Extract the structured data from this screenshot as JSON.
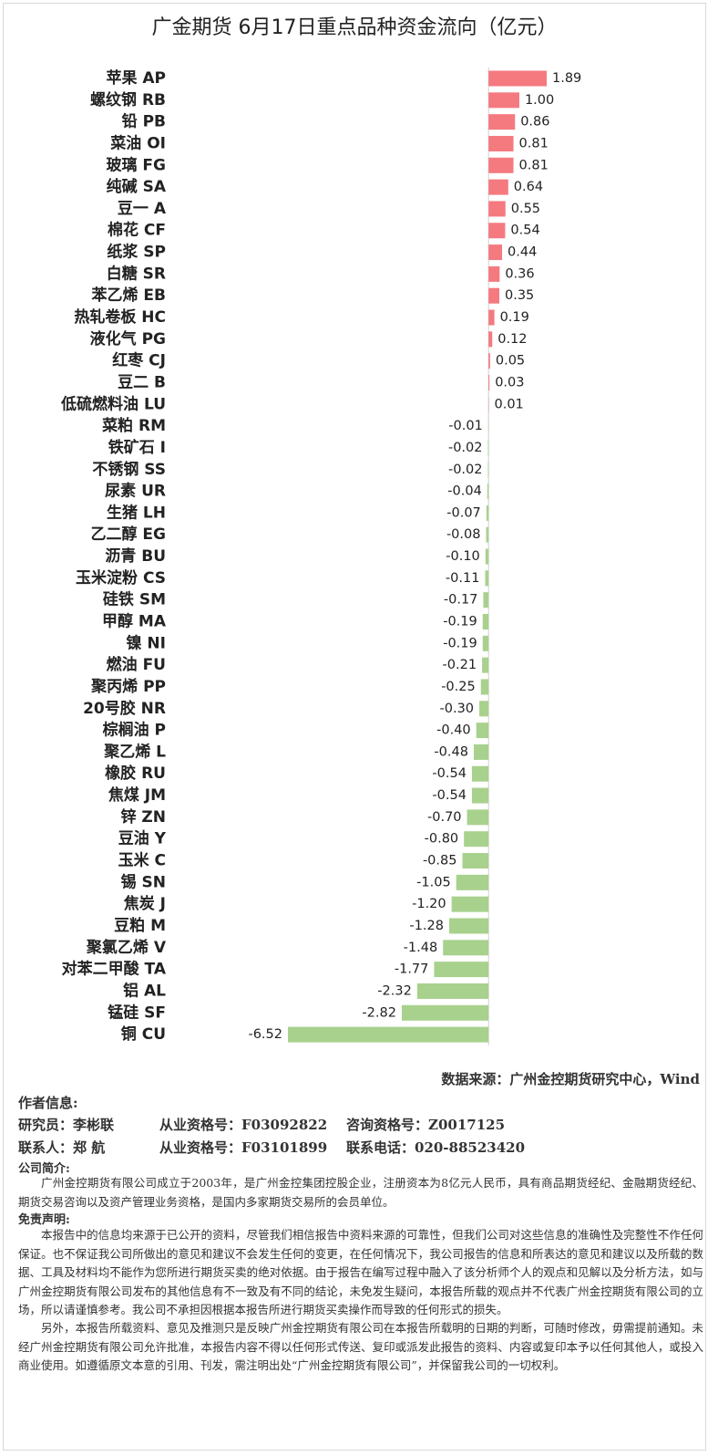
{
  "chart_data": {
    "type": "hbar",
    "title": "广金期货 6月17日重点品种资金流向（亿元）",
    "categories": [
      "苹果 AP",
      "螺纹钢 RB",
      "铅 PB",
      "菜油 OI",
      "玻璃 FG",
      "纯碱 SA",
      "豆一 A",
      "棉花 CF",
      "纸浆 SP",
      "白糖 SR",
      "苯乙烯 EB",
      "热轧卷板 HC",
      "液化气 PG",
      "红枣 CJ",
      "豆二 B",
      "低硫燃料油 LU",
      "菜粕 RM",
      "铁矿石 I",
      "不锈钢 SS",
      "尿素 UR",
      "生猪 LH",
      "乙二醇 EG",
      "沥青 BU",
      "玉米淀粉 CS",
      "硅铁 SM",
      "甲醇 MA",
      "镍 NI",
      "燃油 FU",
      "聚丙烯 PP",
      "20号胶 NR",
      "棕榈油 P",
      "聚乙烯 L",
      "橡胶 RU",
      "焦煤 JM",
      "锌 ZN",
      "豆油 Y",
      "玉米 C",
      "锡 SN",
      "焦炭 J",
      "豆粕 M",
      "聚氯乙烯 V",
      "对苯二甲酸 TA",
      "铝 AL",
      "锰硅 SF",
      "铜 CU"
    ],
    "values": [
      1.89,
      1.0,
      0.86,
      0.81,
      0.81,
      0.64,
      0.55,
      0.54,
      0.44,
      0.36,
      0.35,
      0.19,
      0.12,
      0.05,
      0.03,
      0.01,
      -0.01,
      -0.02,
      -0.02,
      -0.04,
      -0.07,
      -0.08,
      -0.1,
      -0.11,
      -0.17,
      -0.19,
      -0.19,
      -0.21,
      -0.25,
      -0.3,
      -0.4,
      -0.48,
      -0.54,
      -0.54,
      -0.7,
      -0.8,
      -0.85,
      -1.05,
      -1.2,
      -1.28,
      -1.48,
      -1.77,
      -2.32,
      -2.82,
      -6.52
    ],
    "value_labels": [
      "1.89",
      "1.00",
      "0.86",
      "0.81",
      "0.81",
      "0.64",
      "0.55",
      "0.54",
      "0.44",
      "0.36",
      "0.35",
      "0.19",
      "0.12",
      "0.05",
      "0.03",
      "0.01",
      "-0.01",
      "-0.02",
      "-0.02",
      "-0.04",
      "-0.07",
      "-0.08",
      "-0.10",
      "-0.11",
      "-0.17",
      "-0.19",
      "-0.19",
      "-0.21",
      "-0.25",
      "-0.30",
      "-0.40",
      "-0.48",
      "-0.54",
      "-0.54",
      "-0.70",
      "-0.80",
      "-0.85",
      "-1.05",
      "-1.20",
      "-1.28",
      "-1.48",
      "-1.77",
      "-2.32",
      "-2.82",
      "-6.52"
    ],
    "positive_color": "#f47a80",
    "negative_color": "#a9d18e"
  },
  "source": "数据来源：广州金控期货研究中心，Wind",
  "author_heading": "作者信息:",
  "researcher": [
    "研究员：李彬联",
    "从业资格号：F03092822",
    "咨询资格号：Z0017125"
  ],
  "contact": [
    "联系人：郑 航",
    "从业资格号：F03101899",
    "联系电话：020-88523420"
  ],
  "company_heading": "公司简介:",
  "company": "广州金控期货有限公司成立于2003年，是广州金控集团控股企业，注册资本为8亿元人民币，具有商品期货经纪、金融期货经纪、期货交易咨询以及资产管理业务资格，是国内多家期货交易所的会员单位。",
  "disclaimer_heading": "免责声明:",
  "disclaimer": [
    "本报告中的信息均来源于已公开的资料，尽管我们相信报告中资料来源的可靠性，但我们公司对这些信息的准确性及完整性不作任何保证。也不保证我公司所做出的意见和建议不会发生任何的变更，在任何情况下，我公司报告的信息和所表达的意见和建议以及所载的数据、工具及材料均不能作为您所进行期货买卖的绝对依据。由于报告在编写过程中融入了该分析师个人的观点和见解以及分析方法，如与广州金控期货有限公司发布的其他信息有不一致及有不同的结论，未免发生疑问，本报告所载的观点并不代表广州金控期货有限公司的立场，所以请谨慎参考。我公司不承担因根据本报告所进行期货买卖操作而导致的任何形式的损失。",
    "另外，本报告所载资料、意见及推测只是反映广州金控期货有限公司在本报告所载明的日期的判断，可随时修改，毋需提前通知。未经广州金控期货有限公司允许批准，本报告内容不得以任何形式传送、复印或派发此报告的资料、内容或复印本予以任何其他人，或投入商业使用。如遵循原文本意的引用、刊发，需注明出处“广州金控期货有限公司”，并保留我公司的一切权利。"
  ]
}
